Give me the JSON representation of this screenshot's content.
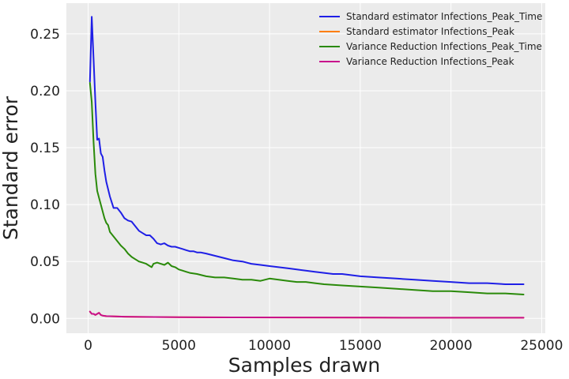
{
  "chart_data": {
    "type": "line",
    "title": "",
    "xlabel": "Samples drawn",
    "ylabel": "Standard error",
    "xlim": [
      -1200,
      25200
    ],
    "ylim": [
      -0.013,
      0.277
    ],
    "xticks": [
      0,
      5000,
      10000,
      15000,
      20000,
      25000
    ],
    "xtick_labels": [
      "0",
      "5000",
      "10000",
      "15000",
      "20000",
      "25000"
    ],
    "yticks": [
      0.0,
      0.05,
      0.1,
      0.15,
      0.2,
      0.25
    ],
    "ytick_labels": [
      "0.00",
      "0.05",
      "0.10",
      "0.15",
      "0.20",
      "0.25"
    ],
    "grid": true,
    "legend_position": "top-right",
    "series": [
      {
        "name": "Standard estimator Infections_Peak_Time",
        "color": "#1f1fe6",
        "points": [
          [
            100,
            0.208
          ],
          [
            200,
            0.265
          ],
          [
            300,
            0.228
          ],
          [
            400,
            0.19
          ],
          [
            500,
            0.157
          ],
          [
            600,
            0.158
          ],
          [
            700,
            0.145
          ],
          [
            800,
            0.142
          ],
          [
            900,
            0.13
          ],
          [
            1000,
            0.12
          ],
          [
            1200,
            0.107
          ],
          [
            1400,
            0.097
          ],
          [
            1600,
            0.097
          ],
          [
            1800,
            0.093
          ],
          [
            2000,
            0.088
          ],
          [
            2200,
            0.086
          ],
          [
            2400,
            0.085
          ],
          [
            2600,
            0.081
          ],
          [
            2800,
            0.077
          ],
          [
            3000,
            0.075
          ],
          [
            3200,
            0.073
          ],
          [
            3400,
            0.073
          ],
          [
            3600,
            0.07
          ],
          [
            3800,
            0.066
          ],
          [
            4000,
            0.065
          ],
          [
            4200,
            0.066
          ],
          [
            4400,
            0.064
          ],
          [
            4600,
            0.063
          ],
          [
            4800,
            0.063
          ],
          [
            5000,
            0.062
          ],
          [
            5200,
            0.061
          ],
          [
            5400,
            0.06
          ],
          [
            5600,
            0.059
          ],
          [
            5800,
            0.059
          ],
          [
            6000,
            0.058
          ],
          [
            6200,
            0.058
          ],
          [
            6500,
            0.057
          ],
          [
            7000,
            0.055
          ],
          [
            7500,
            0.053
          ],
          [
            8000,
            0.051
          ],
          [
            8500,
            0.05
          ],
          [
            9000,
            0.048
          ],
          [
            9500,
            0.047
          ],
          [
            10000,
            0.046
          ],
          [
            10500,
            0.045
          ],
          [
            11000,
            0.044
          ],
          [
            11500,
            0.043
          ],
          [
            12000,
            0.042
          ],
          [
            12500,
            0.041
          ],
          [
            13000,
            0.04
          ],
          [
            13500,
            0.039
          ],
          [
            14000,
            0.039
          ],
          [
            15000,
            0.037
          ],
          [
            16000,
            0.036
          ],
          [
            17000,
            0.035
          ],
          [
            18000,
            0.034
          ],
          [
            19000,
            0.033
          ],
          [
            20000,
            0.032
          ],
          [
            21000,
            0.031
          ],
          [
            22000,
            0.031
          ],
          [
            23000,
            0.03
          ],
          [
            24000,
            0.03
          ]
        ]
      },
      {
        "name": "Standard estimator Infections_Peak",
        "color": "#ff7f0e",
        "points": [
          [
            100,
            0.006
          ],
          [
            200,
            0.004
          ],
          [
            300,
            0.004
          ],
          [
            400,
            0.003
          ],
          [
            500,
            0.004
          ],
          [
            600,
            0.005
          ],
          [
            700,
            0.003
          ],
          [
            800,
            0.0025
          ],
          [
            1000,
            0.002
          ],
          [
            1500,
            0.0018
          ],
          [
            2000,
            0.0015
          ],
          [
            3000,
            0.0013
          ],
          [
            5000,
            0.0011
          ],
          [
            8000,
            0.0009
          ],
          [
            12000,
            0.0008
          ],
          [
            16000,
            0.0007
          ],
          [
            20000,
            0.0006
          ],
          [
            24000,
            0.0006
          ]
        ]
      },
      {
        "name": "Variance Reduction Infections_Peak_Time",
        "color": "#2a8a0a",
        "points": [
          [
            100,
            0.207
          ],
          [
            200,
            0.19
          ],
          [
            300,
            0.155
          ],
          [
            400,
            0.127
          ],
          [
            500,
            0.112
          ],
          [
            600,
            0.106
          ],
          [
            700,
            0.1
          ],
          [
            800,
            0.094
          ],
          [
            900,
            0.088
          ],
          [
            1000,
            0.084
          ],
          [
            1100,
            0.082
          ],
          [
            1200,
            0.076
          ],
          [
            1400,
            0.072
          ],
          [
            1600,
            0.068
          ],
          [
            1800,
            0.064
          ],
          [
            2000,
            0.061
          ],
          [
            2200,
            0.057
          ],
          [
            2400,
            0.054
          ],
          [
            2600,
            0.052
          ],
          [
            2800,
            0.05
          ],
          [
            3000,
            0.049
          ],
          [
            3200,
            0.048
          ],
          [
            3400,
            0.046
          ],
          [
            3500,
            0.045
          ],
          [
            3600,
            0.048
          ],
          [
            3800,
            0.049
          ],
          [
            4000,
            0.048
          ],
          [
            4200,
            0.047
          ],
          [
            4400,
            0.049
          ],
          [
            4600,
            0.046
          ],
          [
            4800,
            0.045
          ],
          [
            5000,
            0.043
          ],
          [
            5200,
            0.042
          ],
          [
            5400,
            0.041
          ],
          [
            5600,
            0.04
          ],
          [
            6000,
            0.039
          ],
          [
            6500,
            0.037
          ],
          [
            7000,
            0.036
          ],
          [
            7500,
            0.036
          ],
          [
            8000,
            0.035
          ],
          [
            8500,
            0.034
          ],
          [
            9000,
            0.034
          ],
          [
            9500,
            0.033
          ],
          [
            10000,
            0.035
          ],
          [
            10500,
            0.034
          ],
          [
            11000,
            0.033
          ],
          [
            11500,
            0.032
          ],
          [
            12000,
            0.032
          ],
          [
            12500,
            0.031
          ],
          [
            13000,
            0.03
          ],
          [
            14000,
            0.029
          ],
          [
            15000,
            0.028
          ],
          [
            16000,
            0.027
          ],
          [
            17000,
            0.026
          ],
          [
            18000,
            0.025
          ],
          [
            19000,
            0.024
          ],
          [
            20000,
            0.024
          ],
          [
            21000,
            0.023
          ],
          [
            22000,
            0.022
          ],
          [
            23000,
            0.022
          ],
          [
            24000,
            0.021
          ]
        ]
      },
      {
        "name": "Variance Reduction Infections_Peak",
        "color": "#c8108c",
        "points": [
          [
            100,
            0.006
          ],
          [
            200,
            0.004
          ],
          [
            300,
            0.004
          ],
          [
            400,
            0.003
          ],
          [
            500,
            0.004
          ],
          [
            600,
            0.005
          ],
          [
            700,
            0.003
          ],
          [
            800,
            0.0025
          ],
          [
            1000,
            0.002
          ],
          [
            1500,
            0.0018
          ],
          [
            2000,
            0.0015
          ],
          [
            3000,
            0.0013
          ],
          [
            5000,
            0.0011
          ],
          [
            8000,
            0.0009
          ],
          [
            12000,
            0.0008
          ],
          [
            16000,
            0.0007
          ],
          [
            20000,
            0.0006
          ],
          [
            24000,
            0.0006
          ]
        ]
      }
    ]
  }
}
